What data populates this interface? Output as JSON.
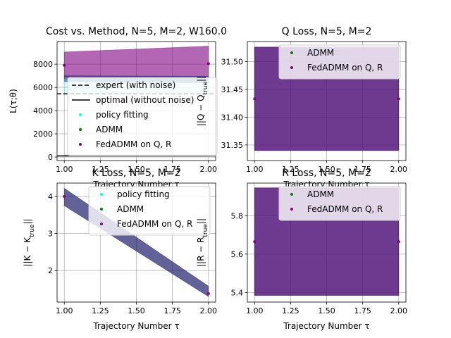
{
  "chart_data": [
    {
      "type": "area",
      "title": "Cost vs. Method, N=5, M=2, W160.0",
      "xlabel": "Trajectory Number τ",
      "ylabel": "L(τ;θ)",
      "xlim": [
        0.95,
        2.05
      ],
      "ylim": [
        -300,
        9950
      ],
      "xticks": [
        1.0,
        1.25,
        1.5,
        1.75,
        2.0
      ],
      "xticklabels": [
        "1.00",
        "1.25",
        "1.50",
        "1.75",
        "2.00"
      ],
      "yticks": [
        0,
        2000,
        4000,
        6000,
        8000
      ],
      "yticklabels": [
        "0",
        "2000",
        "4000",
        "6000",
        "8000"
      ],
      "grid": true,
      "legend": {
        "placement": "lower right",
        "entries": [
          {
            "label": "expert (with noise)",
            "kind": "dashed-line",
            "color": "#000000"
          },
          {
            "label": "optimal (without noise)",
            "kind": "line",
            "color": "#000000"
          },
          {
            "label": "policy fitting",
            "kind": "dot",
            "color": "#00ffff"
          },
          {
            "label": "ADMM",
            "kind": "dot",
            "color": "#008000"
          },
          {
            "label": "FedADMM on Q, R",
            "kind": "dot",
            "color": "#800080"
          }
        ]
      },
      "lines": [
        {
          "name": "expert (with noise)",
          "style": "dashed",
          "color": "#000000",
          "y": 5450
        },
        {
          "name": "optimal (without noise)",
          "style": "solid",
          "color": "#000000",
          "y": 100
        }
      ],
      "bands": [
        {
          "name": "FedADMM on Q, R",
          "color": "#800080",
          "alpha": 0.6,
          "x": [
            1.0,
            2.0
          ],
          "lower": [
            6900,
            6850
          ],
          "upper": [
            9050,
            9550
          ]
        },
        {
          "name": "ADMM",
          "color": "#1f1f6e",
          "alpha": 0.6,
          "x": [
            1.0,
            2.0
          ],
          "lower": [
            6500,
            6400
          ],
          "upper": [
            7000,
            6950
          ]
        },
        {
          "name": "policy fitting",
          "color": "#00ffff",
          "alpha": 0.15,
          "x": [
            1.0,
            2.0
          ],
          "lower": [
            5500,
            5450
          ],
          "upper": [
            6700,
            6650
          ]
        },
        {
          "name": "band",
          "color": "#c8c8c8",
          "alpha": 0.8,
          "x": [
            1.0,
            2.0
          ],
          "lower": [
            0,
            0
          ],
          "upper": [
            200,
            200
          ]
        }
      ],
      "points": [
        {
          "name": "FedADMM on Q, R",
          "color": "#800080",
          "x": [
            1.0,
            2.0
          ],
          "y": [
            7900,
            8050
          ]
        }
      ]
    },
    {
      "type": "area",
      "title": "Q Loss, N=5, M=2",
      "xlabel": "Trajectory Number τ",
      "ylabel": "||Q − Q_true||",
      "xlim": [
        0.95,
        2.05
      ],
      "ylim": [
        31.322,
        31.536
      ],
      "xticks": [
        1.0,
        1.25,
        1.5,
        1.75,
        2.0
      ],
      "xticklabels": [
        "1.00",
        "1.25",
        "1.50",
        "1.75",
        "2.00"
      ],
      "yticks": [
        31.35,
        31.4,
        31.45,
        31.5
      ],
      "yticklabels": [
        "31.35",
        "31.40",
        "31.45",
        "31.50"
      ],
      "grid": true,
      "legend": {
        "placement": "upper right",
        "entries": [
          {
            "label": "ADMM",
            "kind": "dot",
            "color": "#008000"
          },
          {
            "label": "FedADMM on Q, R",
            "kind": "dot",
            "color": "#800080"
          }
        ]
      },
      "bands": [
        {
          "name": "ADMM",
          "color": "#1f1f6e",
          "alpha": 0.7,
          "x": [
            1.0,
            2.0
          ],
          "lower": [
            31.34,
            31.34
          ],
          "upper": [
            31.526,
            31.526
          ]
        },
        {
          "name": "FedADMM on Q, R",
          "color": "#800080",
          "alpha": 0.4,
          "x": [
            1.0,
            2.0
          ],
          "lower": [
            31.34,
            31.34
          ],
          "upper": [
            31.526,
            31.526
          ]
        }
      ],
      "points": [
        {
          "name": "FedADMM on Q, R",
          "color": "#800080",
          "x": [
            1.0,
            2.0
          ],
          "y": [
            31.433,
            31.433
          ]
        }
      ]
    },
    {
      "type": "area",
      "title": "K Loss, N=5, M=2",
      "xlabel": "Trajectory Number τ",
      "ylabel": "||K − K_true||",
      "xlim": [
        0.95,
        2.05
      ],
      "ylim": [
        1.15,
        4.36
      ],
      "xticks": [
        1.0,
        1.25,
        1.5,
        1.75,
        2.0
      ],
      "xticklabels": [
        "1.00",
        "1.25",
        "1.50",
        "1.75",
        "2.00"
      ],
      "yticks": [
        2,
        3,
        4
      ],
      "yticklabels": [
        "2",
        "3",
        "4"
      ],
      "grid": true,
      "legend": {
        "placement": "upper right",
        "entries": [
          {
            "label": "policy fitting",
            "kind": "dot",
            "color": "#00ffff"
          },
          {
            "label": "ADMM",
            "kind": "dot",
            "color": "#008000"
          },
          {
            "label": "FedADMM on Q, R",
            "kind": "dot",
            "color": "#800080"
          }
        ]
      },
      "bands": [
        {
          "name": "ADMM",
          "color": "#1f1f6e",
          "alpha": 0.7,
          "x": [
            1.0,
            2.0
          ],
          "lower": [
            3.75,
            1.3
          ],
          "upper": [
            4.22,
            1.58
          ]
        }
      ],
      "points": [
        {
          "name": "FedADMM on Q, R",
          "color": "#800080",
          "x": [
            1.0,
            2.0
          ],
          "y": [
            4.0,
            1.38
          ]
        }
      ]
    },
    {
      "type": "area",
      "title": "R Loss, N=5, M=2",
      "xlabel": "Trajectory Number τ",
      "ylabel": "||R − R_true||",
      "xlim": [
        0.95,
        2.05
      ],
      "ylim": [
        5.35,
        5.97
      ],
      "xticks": [
        1.0,
        1.25,
        1.5,
        1.75,
        2.0
      ],
      "xticklabels": [
        "1.00",
        "1.25",
        "1.50",
        "1.75",
        "2.00"
      ],
      "yticks": [
        5.4,
        5.6,
        5.8
      ],
      "yticklabels": [
        "5.4",
        "5.6",
        "5.8"
      ],
      "grid": true,
      "legend": {
        "placement": "upper right",
        "entries": [
          {
            "label": "ADMM",
            "kind": "dot",
            "color": "#008000"
          },
          {
            "label": "FedADMM on Q, R",
            "kind": "dot",
            "color": "#800080"
          }
        ]
      },
      "bands": [
        {
          "name": "ADMM",
          "color": "#1f1f6e",
          "alpha": 0.7,
          "x": [
            1.0,
            2.0
          ],
          "lower": [
            5.385,
            5.385
          ],
          "upper": [
            5.945,
            5.945
          ]
        },
        {
          "name": "FedADMM on Q, R",
          "color": "#800080",
          "alpha": 0.4,
          "x": [
            1.0,
            2.0
          ],
          "lower": [
            5.385,
            5.385
          ],
          "upper": [
            5.945,
            5.945
          ]
        }
      ],
      "points": [
        {
          "name": "FedADMM on Q, R",
          "color": "#800080",
          "x": [
            1.0,
            2.0
          ],
          "y": [
            5.665,
            5.665
          ]
        }
      ]
    }
  ]
}
